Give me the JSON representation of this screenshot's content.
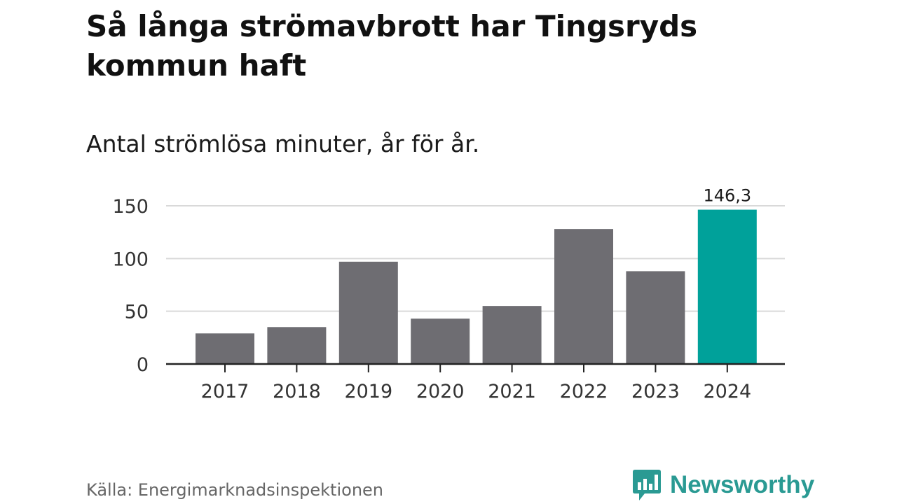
{
  "header": {
    "title": "Så långa strömavbrott har Tingsryds kommun haft",
    "subtitle": "Antal strömlösa minuter, år för år."
  },
  "footer": {
    "source": "Källa: Energimarknadsinspektionen",
    "brand": "Newsworthy",
    "brand_icon": "bar-chart-speech-bubble-icon"
  },
  "colors": {
    "bar": "#6e6d72",
    "highlight": "#00a19a",
    "grid": "#d9d9d9",
    "axis": "#222222",
    "brand": "#2a9a93"
  },
  "chart_data": {
    "type": "bar",
    "title": "Så långa strömavbrott har Tingsryds kommun haft",
    "subtitle": "Antal strömlösa minuter, år för år.",
    "xlabel": "",
    "ylabel": "",
    "categories": [
      "2017",
      "2018",
      "2019",
      "2020",
      "2021",
      "2022",
      "2023",
      "2024"
    ],
    "values": [
      29,
      35,
      97,
      43,
      55,
      128,
      88,
      146.3
    ],
    "highlight_index": 7,
    "data_labels": [
      {
        "index": 7,
        "text": "146,3"
      }
    ],
    "yticks": [
      0,
      50,
      100,
      150
    ],
    "ylim": [
      0,
      150
    ],
    "grid": true,
    "legend": "none"
  }
}
